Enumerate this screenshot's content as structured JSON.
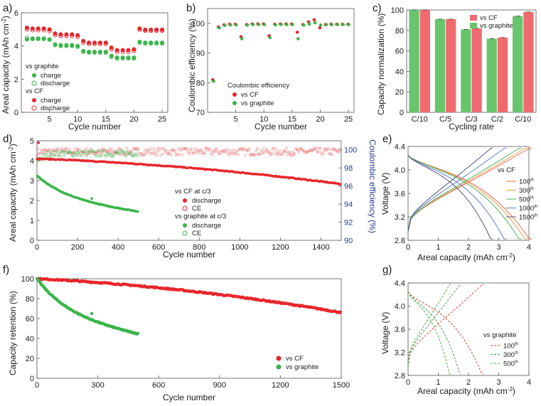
{
  "colors": {
    "cf": "#e8262c",
    "graphite": "#3ab54a",
    "cf_bar": "#ef6b6f",
    "graphite_bar": "#69c46e",
    "ce_axis": "#2b3a8f"
  },
  "chart_data": [
    {
      "panel_label": "a)",
      "type": "scatter",
      "xlabel": "Cycle number",
      "ylabel": "Areal capacity (mAh cm",
      "ylabel_sup": "-2",
      "ylabel_tail": ")",
      "xlim": [
        0,
        26
      ],
      "ylim": [
        0,
        6
      ],
      "xticks": [
        5,
        10,
        15,
        20,
        25
      ],
      "yticks": [
        0,
        2,
        4,
        6
      ],
      "legend": {
        "group1": "vs graphite",
        "group2": "vs CF",
        "charge": "charge",
        "discharge": "discharge"
      },
      "series": [
        {
          "name": "vs CF charge",
          "x": [
            1,
            2,
            3,
            4,
            5,
            6,
            7,
            8,
            9,
            10,
            11,
            12,
            13,
            14,
            15,
            16,
            17,
            18,
            19,
            20,
            21,
            22,
            23,
            24,
            25
          ],
          "y": [
            5.1,
            5.05,
            5.05,
            5.05,
            5.0,
            4.75,
            4.7,
            4.7,
            4.7,
            4.65,
            4.3,
            4.2,
            4.2,
            4.2,
            4.2,
            3.9,
            3.75,
            3.75,
            3.75,
            3.8,
            5.05,
            4.98,
            4.98,
            4.98,
            4.98
          ]
        },
        {
          "name": "vs CF discharge",
          "x": [
            1,
            2,
            3,
            4,
            5,
            6,
            7,
            8,
            9,
            10,
            11,
            12,
            13,
            14,
            15,
            16,
            17,
            18,
            19,
            20,
            21,
            22,
            23,
            24,
            25
          ],
          "y": [
            5.0,
            4.95,
            4.95,
            4.95,
            4.9,
            4.65,
            4.6,
            4.6,
            4.6,
            4.55,
            4.2,
            4.12,
            4.12,
            4.12,
            4.12,
            3.8,
            3.65,
            3.65,
            3.65,
            3.7,
            4.98,
            4.92,
            4.92,
            4.92,
            4.92
          ]
        },
        {
          "name": "vs graphite charge",
          "x": [
            1,
            2,
            3,
            4,
            5,
            6,
            7,
            8,
            9,
            10,
            11,
            12,
            13,
            14,
            15,
            16,
            17,
            18,
            19,
            20,
            21,
            22,
            23,
            24,
            25
          ],
          "y": [
            4.4,
            4.45,
            4.45,
            4.45,
            4.4,
            4.1,
            4.05,
            4.05,
            4.05,
            4.0,
            3.7,
            3.65,
            3.65,
            3.65,
            3.65,
            3.4,
            3.3,
            3.3,
            3.3,
            3.3,
            4.25,
            4.2,
            4.2,
            4.2,
            4.2
          ]
        },
        {
          "name": "vs graphite discharge",
          "x": [
            1,
            2,
            3,
            4,
            5,
            6,
            7,
            8,
            9,
            10,
            11,
            12,
            13,
            14,
            15,
            16,
            17,
            18,
            19,
            20,
            21,
            22,
            23,
            24,
            25
          ],
          "y": [
            4.5,
            4.42,
            4.42,
            4.42,
            4.38,
            4.05,
            4.0,
            4.0,
            4.0,
            3.95,
            3.65,
            3.6,
            3.6,
            3.6,
            3.6,
            3.35,
            3.25,
            3.25,
            3.25,
            3.25,
            4.2,
            4.15,
            4.15,
            4.15,
            4.15
          ]
        }
      ]
    },
    {
      "panel_label": "b)",
      "type": "scatter",
      "xlabel": "Cycle number",
      "ylabel": "Coulombic efficiency (%)",
      "xlim": [
        0,
        26
      ],
      "ylim": [
        70,
        105
      ],
      "xticks": [
        5,
        10,
        15,
        20,
        25
      ],
      "yticks": [
        70,
        80,
        90,
        100
      ],
      "legend": {
        "title": "Coulombic efficiency",
        "cf": "vs CF",
        "graphite": "vs graphite"
      },
      "series": [
        {
          "name": "vs CF",
          "x": [
            1,
            2,
            3,
            4,
            5,
            6,
            7,
            8,
            9,
            10,
            11,
            12,
            13,
            14,
            15,
            16,
            17,
            18,
            19,
            20,
            21,
            22,
            23,
            24,
            25
          ],
          "y": [
            81.0,
            98.8,
            99.5,
            99.7,
            99.7,
            95.5,
            99.6,
            99.8,
            99.8,
            99.8,
            95.8,
            99.7,
            99.8,
            99.8,
            99.8,
            97.0,
            99.6,
            100.5,
            101.2,
            98.5,
            99.6,
            99.7,
            99.7,
            99.7,
            99.7
          ]
        },
        {
          "name": "vs graphite",
          "x": [
            1,
            2,
            3,
            4,
            5,
            6,
            7,
            8,
            9,
            10,
            11,
            12,
            13,
            14,
            15,
            16,
            17,
            18,
            19,
            20,
            21,
            22,
            23,
            24,
            25
          ],
          "y": [
            80.5,
            98.5,
            99.3,
            99.5,
            99.5,
            94.8,
            99.4,
            99.6,
            99.6,
            99.6,
            95.2,
            99.5,
            99.6,
            99.6,
            99.6,
            94.8,
            99.4,
            99.8,
            100.2,
            99.4,
            99.6,
            99.6,
            99.6,
            99.6,
            99.6
          ]
        }
      ]
    },
    {
      "panel_label": "c)",
      "type": "bar",
      "xlabel": "Cycling rate",
      "ylabel": "Capacity normalization (%)",
      "categories": [
        "C/10",
        "C/5",
        "C/3",
        "C/2",
        "C/10"
      ],
      "ylim": [
        0,
        100
      ],
      "yticks": [
        0,
        20,
        40,
        60,
        80,
        100
      ],
      "series": [
        {
          "name": "vs graphite",
          "values": [
            100,
            91,
            81,
            72,
            94
          ]
        },
        {
          "name": "vs CF",
          "values": [
            100,
            91,
            82,
            73,
            98
          ]
        }
      ],
      "legend": {
        "cf": "vs CF",
        "graphite": "vs graphite"
      }
    },
    {
      "panel_label": "d)",
      "type": "scatter",
      "xlabel": "Cycle number",
      "ylabel": "Areal capacity (mAh cm",
      "ylabel_sup": "-2",
      "ylabel_tail": ")",
      "ylabel_right": "Coulombic efficiency (%)",
      "xlim": [
        0,
        1500
      ],
      "ylim": [
        0,
        5
      ],
      "ylim_right": [
        90,
        101
      ],
      "xticks": [
        0,
        200,
        400,
        600,
        800,
        1000,
        1200,
        1400
      ],
      "yticks": [
        0,
        1,
        2,
        3,
        4,
        5
      ],
      "yticks_right": [
        90,
        92,
        94,
        96,
        98,
        100
      ],
      "legend": {
        "cf_title": "vs CF at c/3",
        "graphite_title": "vs graphite at c/3",
        "discharge": "discharge",
        "ce": "CE"
      },
      "series": [
        {
          "name": "vs CF discharge",
          "x_range": [
            1,
            1500
          ],
          "start": 4.1,
          "end": 2.7
        },
        {
          "name": "vs CF CE",
          "x_range": [
            1,
            1500
          ],
          "mean": 99.8
        },
        {
          "name": "vs graphite discharge",
          "x_range": [
            1,
            500
          ],
          "start": 3.25,
          "end": 1.4
        },
        {
          "name": "vs graphite CE",
          "x_range": [
            1,
            500
          ],
          "mean": 99.6
        }
      ]
    },
    {
      "panel_label": "e)",
      "type": "line",
      "xlabel": "Areal capacity (mAh cm",
      "xlabel_sup": "-2",
      "xlabel_tail": ")",
      "ylabel": "Voltage (V)",
      "xlim": [
        0,
        4
      ],
      "ylim": [
        2.8,
        4.4
      ],
      "xticks": [
        0,
        1,
        2,
        3,
        4
      ],
      "yticks": [
        2.8,
        3.2,
        3.6,
        4.0,
        4.4
      ],
      "legend": {
        "title": "vs CF"
      },
      "series": [
        {
          "name": "100",
          "sup": "th",
          "color": "#f26a50",
          "capacity": 4.1
        },
        {
          "name": "300",
          "sup": "th",
          "color": "#e0a050",
          "capacity": 3.95
        },
        {
          "name": "500",
          "sup": "th",
          "color": "#4fb060",
          "capacity": 3.75
        },
        {
          "name": "1000",
          "sup": "th",
          "color": "#5a7fcc",
          "capacity": 3.25
        },
        {
          "name": "1500",
          "sup": "th",
          "color": "#555577",
          "capacity": 2.8
        }
      ]
    },
    {
      "panel_label": "f)",
      "type": "scatter",
      "xlabel": "Cycle number",
      "ylabel": "Capacity retention (%)",
      "xlim": [
        0,
        1500
      ],
      "ylim": [
        0,
        100
      ],
      "xticks": [
        0,
        300,
        600,
        900,
        1200,
        1500
      ],
      "yticks": [
        0,
        20,
        40,
        60,
        80,
        100
      ],
      "legend": {
        "cf": "vs CF",
        "graphite": "vs graphite"
      },
      "series": [
        {
          "name": "vs CF",
          "x_range": [
            1,
            1500
          ],
          "start": 100,
          "end": 66
        },
        {
          "name": "vs graphite",
          "x_range": [
            1,
            500
          ],
          "start": 100,
          "end": 43
        }
      ]
    },
    {
      "panel_label": "g)",
      "type": "line",
      "xlabel": "Areal capacity (mAh cm",
      "xlabel_sup": "-2",
      "xlabel_tail": ")",
      "ylabel": "Voltage (V)",
      "xlim": [
        0,
        4
      ],
      "ylim": [
        2.8,
        4.4
      ],
      "xticks": [
        0,
        1,
        2,
        3,
        4
      ],
      "yticks": [
        2.8,
        3.2,
        3.6,
        4.0,
        4.4
      ],
      "legend": {
        "title": "vs graphite"
      },
      "series": [
        {
          "name": "100",
          "sup": "th",
          "color": "#d84a3a",
          "capacity": 2.5
        },
        {
          "name": "300",
          "sup": "th",
          "color": "#4a9a50",
          "capacity": 1.75
        },
        {
          "name": "500",
          "sup": "th",
          "color": "#48b048",
          "capacity": 1.4
        }
      ]
    }
  ]
}
